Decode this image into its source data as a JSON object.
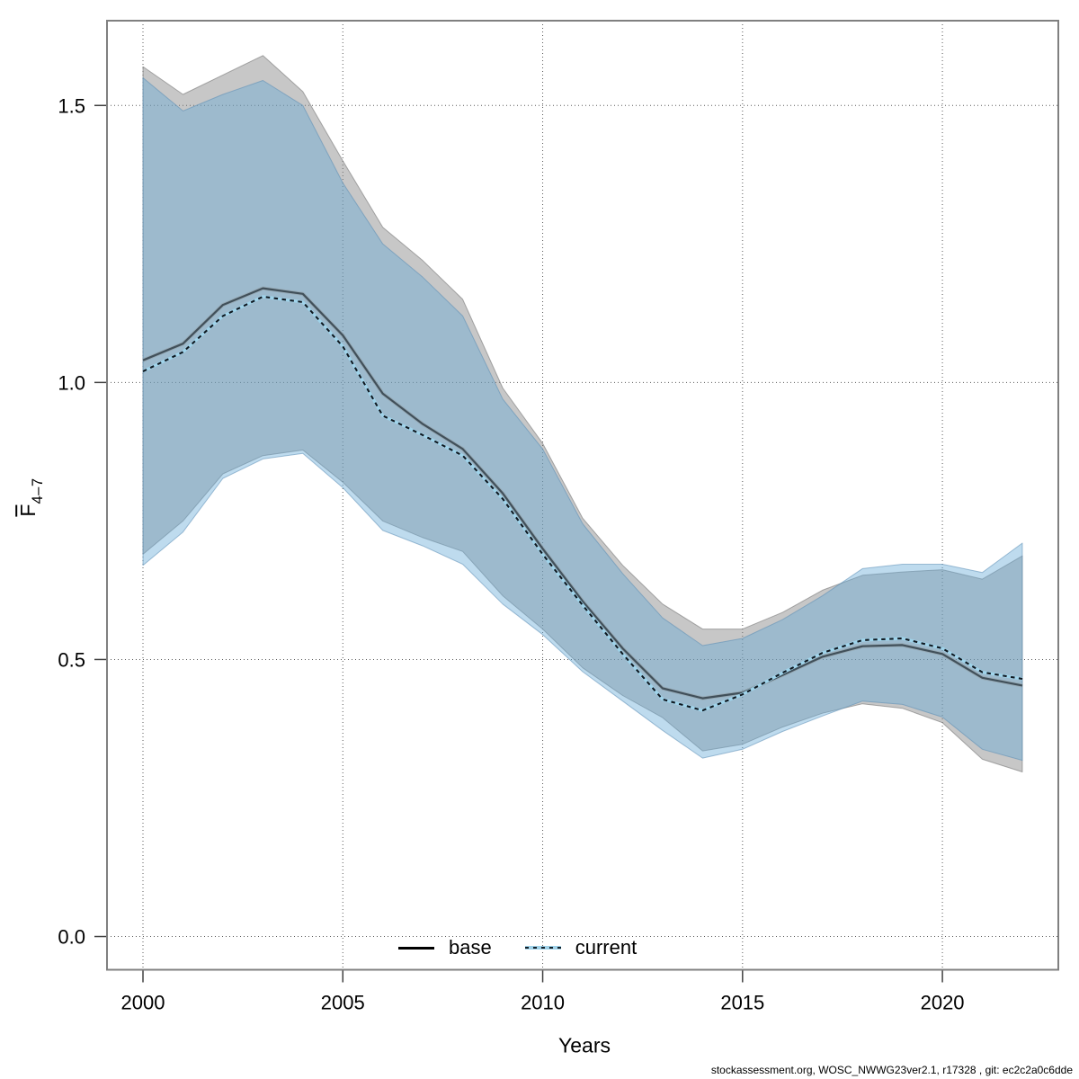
{
  "chart_data": {
    "type": "area",
    "title": "",
    "xlabel": "Years",
    "ylabel": {
      "base": "F",
      "sub": "4–7",
      "overline": true
    },
    "x": [
      2000,
      2001,
      2002,
      2003,
      2004,
      2005,
      2006,
      2007,
      2008,
      2009,
      2010,
      2011,
      2012,
      2013,
      2014,
      2015,
      2016,
      2017,
      2018,
      2019,
      2020,
      2021,
      2022
    ],
    "series": [
      {
        "name": "base",
        "line_style": "solid",
        "values": [
          1.04,
          1.07,
          1.14,
          1.17,
          1.16,
          1.085,
          0.98,
          0.925,
          0.88,
          0.8,
          0.7,
          0.605,
          0.52,
          0.448,
          0.43,
          0.44,
          0.472,
          0.505,
          0.524,
          0.526,
          0.51,
          0.467,
          0.453
        ],
        "ci_upper": [
          1.57,
          1.52,
          1.555,
          1.59,
          1.525,
          1.4,
          1.28,
          1.22,
          1.15,
          0.99,
          0.89,
          0.755,
          0.67,
          0.6,
          0.555,
          0.555,
          0.585,
          0.625,
          0.652,
          0.658,
          0.662,
          0.645,
          0.687
        ],
        "ci_lower": [
          0.69,
          0.75,
          0.835,
          0.868,
          0.878,
          0.82,
          0.75,
          0.72,
          0.695,
          0.615,
          0.555,
          0.485,
          0.435,
          0.395,
          0.335,
          0.347,
          0.378,
          0.403,
          0.42,
          0.412,
          0.386,
          0.32,
          0.297
        ]
      },
      {
        "name": "current",
        "line_style": "dotted",
        "values": [
          1.02,
          1.055,
          1.12,
          1.155,
          1.145,
          1.065,
          0.94,
          0.905,
          0.868,
          0.79,
          0.69,
          0.598,
          0.51,
          0.428,
          0.408,
          0.437,
          0.476,
          0.512,
          0.535,
          0.538,
          0.52,
          0.477,
          0.465
        ],
        "ci_upper": [
          1.55,
          1.49,
          1.52,
          1.545,
          1.5,
          1.36,
          1.25,
          1.19,
          1.12,
          0.97,
          0.88,
          0.745,
          0.655,
          0.575,
          0.525,
          0.538,
          0.572,
          0.615,
          0.664,
          0.672,
          0.672,
          0.657,
          0.71
        ],
        "ci_lower": [
          0.67,
          0.73,
          0.827,
          0.862,
          0.872,
          0.81,
          0.733,
          0.705,
          0.672,
          0.6,
          0.545,
          0.478,
          0.425,
          0.372,
          0.322,
          0.338,
          0.37,
          0.398,
          0.425,
          0.419,
          0.396,
          0.338,
          0.318
        ]
      }
    ],
    "axes": {
      "x": {
        "ticks": [
          2000,
          2005,
          2010,
          2015,
          2020
        ],
        "tick_labels": [
          "2000",
          "2005",
          "2010",
          "2015",
          "2020"
        ],
        "range": [
          1999.1,
          2022.9
        ]
      },
      "y": {
        "tick_values": [
          0,
          0.5,
          1.0,
          1.5
        ],
        "tick_labels": [
          "0.0",
          "0.5",
          "1.0",
          "1.5"
        ],
        "range": [
          -0.06,
          1.653
        ]
      }
    },
    "grid": true,
    "legend": {
      "position": "bottom-center",
      "entries": [
        {
          "label": "base"
        },
        {
          "label": "current"
        }
      ]
    },
    "colors": {
      "base_band_fill": "rgba(130,130,130,0.45)",
      "base_band_stroke": "rgba(110,110,110,0.55)",
      "current_band_fill": "rgba(100,170,215,0.42)",
      "current_band_stroke": "rgba(90,140,180,0.55)",
      "base_line": "#41505a",
      "base_line_halo": "#94a4ae",
      "current_line_bg": "#9fd3ea",
      "current_line_dash": "#101820",
      "grid": "#5a5a5a",
      "border": "#808080",
      "tick": "#404040",
      "text": "#000000"
    }
  },
  "footer": {
    "credit": "stockassessment.org, WOSC_NWWG23ver2.1, r17328 , git: ec2c2a0c6dde"
  }
}
